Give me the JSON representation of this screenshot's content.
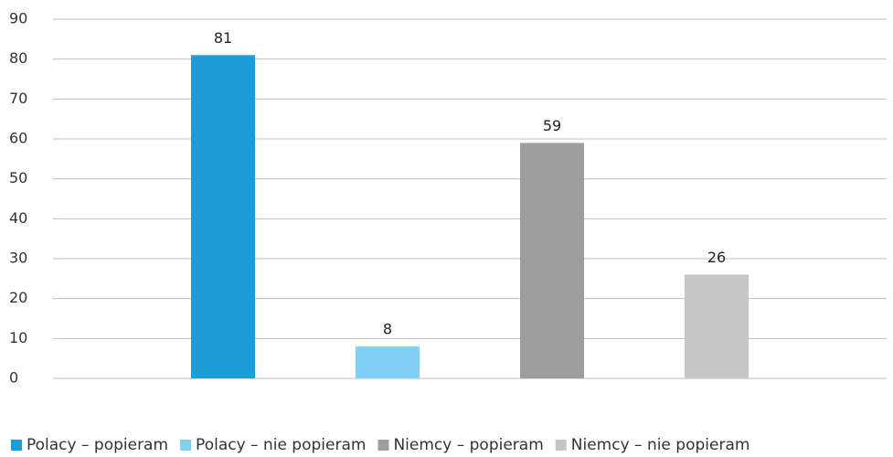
{
  "chart_data": {
    "type": "bar",
    "categories": [
      null
    ],
    "series": [
      {
        "name": "Polacy – popieram",
        "color": "#1e9cd7",
        "values": [
          81
        ]
      },
      {
        "name": "Polacy – nie popieram",
        "color": "#82cff5",
        "values": [
          8
        ]
      },
      {
        "name": "Niemcy – popieram",
        "color": "#9e9e9e",
        "values": [
          59
        ]
      },
      {
        "name": "Niemcy – nie popieram",
        "color": "#c6c6c6",
        "values": [
          26
        ]
      }
    ],
    "ylim": [
      0,
      90
    ],
    "yticks": [
      0,
      10,
      20,
      30,
      40,
      50,
      60,
      70,
      80,
      90
    ],
    "grid": true,
    "legend": "bottom"
  }
}
